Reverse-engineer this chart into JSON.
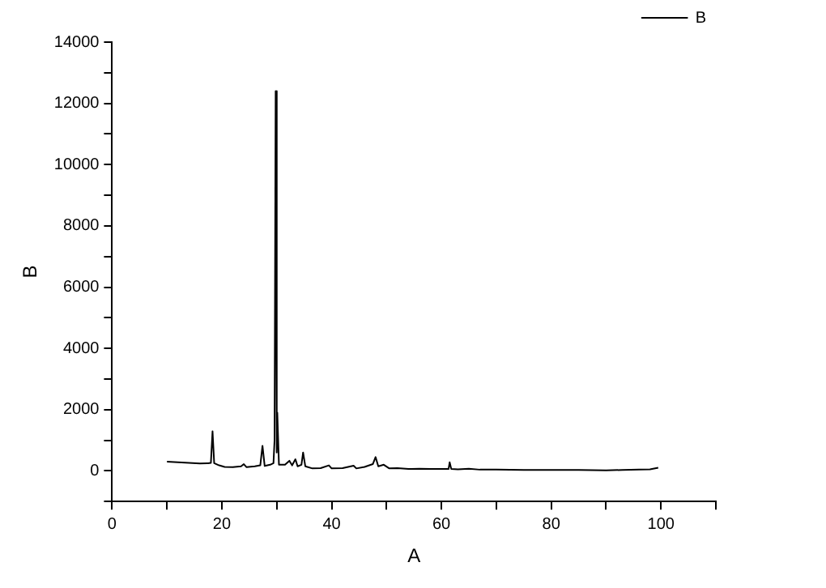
{
  "chart_data": {
    "type": "line",
    "xlabel": "A",
    "ylabel": "B",
    "xlim": [
      0,
      110
    ],
    "xticks": [
      0,
      {
        "value": 10,
        "label": null
      },
      20,
      {
        "value": 30,
        "label": null
      },
      40,
      {
        "value": 50,
        "label": null
      },
      60,
      {
        "value": 70,
        "label": null
      },
      80,
      {
        "value": 90,
        "label": null
      },
      100,
      {
        "value": 110,
        "label": null
      }
    ],
    "ylim": [
      -1000,
      14000
    ],
    "yticks": [
      {
        "value": -1000,
        "label": null
      },
      0,
      {
        "value": 1000,
        "label": null
      },
      2000,
      {
        "value": 3000,
        "label": null
      },
      4000,
      {
        "value": 5000,
        "label": null
      },
      6000,
      {
        "value": 7000,
        "label": null
      },
      8000,
      {
        "value": 9000,
        "label": null
      },
      10000,
      {
        "value": 11000,
        "label": null
      },
      12000,
      {
        "value": 13000,
        "label": null
      },
      14000
    ],
    "grid": false,
    "legend": "top right",
    "marker": "none",
    "line_style": "solid",
    "series": [
      {
        "name": "B",
        "color": "#000000",
        "x": [
          10,
          12,
          14,
          16,
          17.5,
          18,
          18.3,
          18.6,
          19.5,
          20.5,
          22,
          23.5,
          24,
          24.5,
          26,
          27,
          27.4,
          27.8,
          28.8,
          29.4,
          29.6,
          29.8,
          30,
          30.1,
          30.4,
          31.5,
          32.3,
          32.8,
          33.4,
          33.8,
          34.5,
          34.8,
          35.2,
          36.5,
          38,
          39.5,
          40,
          42,
          44,
          44.5,
          46,
          47.5,
          48,
          48.5,
          49.5,
          50.5,
          52,
          54,
          56,
          58,
          60,
          61.3,
          61.5,
          61.8,
          63,
          65,
          67,
          70,
          75,
          80,
          85,
          90,
          93,
          96,
          98,
          99.5
        ],
        "values": [
          300,
          280,
          260,
          240,
          250,
          260,
          1290,
          250,
          180,
          130,
          120,
          150,
          220,
          120,
          150,
          180,
          820,
          160,
          200,
          250,
          1000,
          12400,
          600,
          1900,
          200,
          200,
          330,
          180,
          380,
          150,
          200,
          600,
          150,
          80,
          90,
          180,
          80,
          90,
          170,
          80,
          130,
          220,
          450,
          150,
          200,
          80,
          90,
          60,
          70,
          60,
          60,
          60,
          280,
          60,
          50,
          70,
          40,
          40,
          30,
          30,
          30,
          20,
          30,
          40,
          50,
          100
        ]
      }
    ]
  }
}
